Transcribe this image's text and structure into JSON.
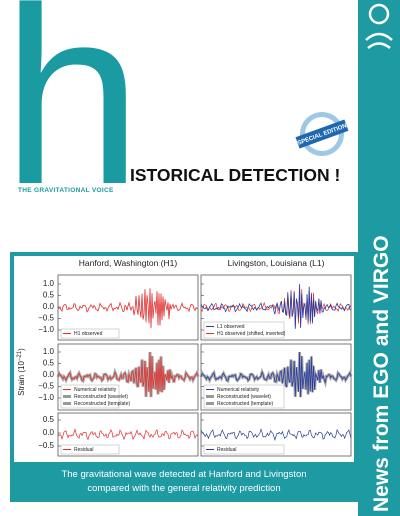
{
  "cover": {
    "letter": "h",
    "tagline": "THE GRAVITATIONAL VOICE",
    "headline": "ISTORICAL DETECTION !",
    "badge": "SPECIAL EDITION",
    "side_title": "News from EGO and VIRGO"
  },
  "figure": {
    "y_label": "Strain (10",
    "y_label_exp": "−21",
    "y_label_end": ")",
    "row_ticks": [
      [
        "1.0",
        "0.5",
        "0.0",
        "−0.5",
        "−1.0"
      ],
      [
        "1.0",
        "0.5",
        "0.0",
        "−0.5",
        "−1.0"
      ],
      [
        "0.5",
        "0.0",
        "−0.5"
      ]
    ],
    "panels": [
      {
        "title": "Hanford, Washington (H1)",
        "legends": [
          [
            "H1 observed"
          ],
          [
            "Numerical relativity",
            "Reconstructed (wavelet)",
            "Reconstructed (template)"
          ],
          [
            "Residual"
          ]
        ]
      },
      {
        "title": "Livingston, Louisiana (L1)",
        "legends": [
          [
            "L1 observed",
            "H1 observed (shifted, inverted)"
          ],
          [
            "Numerical relativity",
            "Reconstructed (wavelet)",
            "Reconstructed (template)"
          ],
          [
            "Residual"
          ]
        ]
      }
    ]
  },
  "caption": [
    "The gravitational wave detected at Hanford and Livingston",
    "compared with the general relativity prediction"
  ]
}
